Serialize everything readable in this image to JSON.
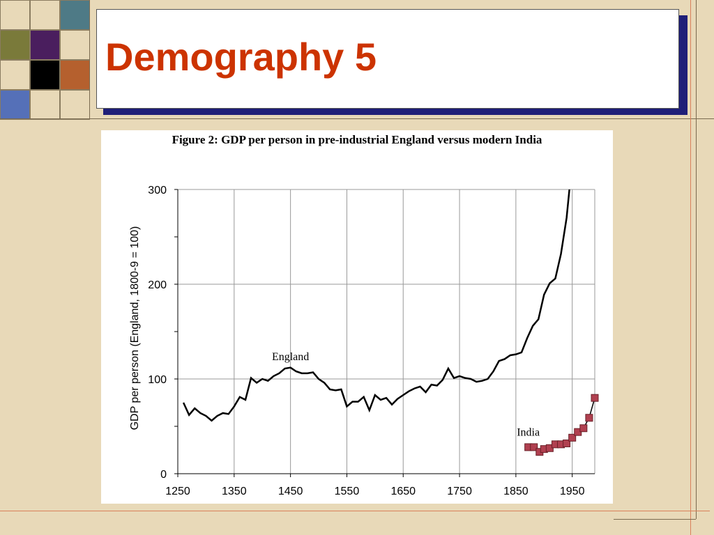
{
  "slide": {
    "title": "Demography 5",
    "accent_color": "#CC3300"
  },
  "decor": {
    "squares": [
      {
        "color": "#E8D9B8"
      },
      {
        "color": "#E8D9B8"
      },
      {
        "color": "#4E7A86"
      },
      {
        "color": "#7A7A3A"
      },
      {
        "color": "#4A1E5E"
      },
      {
        "color": "#E8D9B8"
      },
      {
        "color": "#E8D9B8"
      },
      {
        "color": "#000000"
      },
      {
        "color": "#B5602E"
      },
      {
        "color": "#5570B8"
      },
      {
        "color": "#E8D9B8"
      },
      {
        "color": "#E8D9B8"
      }
    ]
  },
  "figure": {
    "caption": "Figure 2: GDP per person in pre-industrial England versus modern India"
  },
  "chart_data": {
    "type": "line",
    "ylabel": "GDP per person (England, 1800-9 = 100)",
    "xlabel": "",
    "xlim": [
      1250,
      1990
    ],
    "ylim": [
      0,
      300
    ],
    "x_ticks": [
      1250,
      1350,
      1450,
      1550,
      1650,
      1750,
      1850,
      1950
    ],
    "y_ticks": [
      0,
      100,
      200,
      300
    ],
    "grid": true,
    "annotations": [
      {
        "text": "England",
        "x": 1450,
        "y": 120
      },
      {
        "text": "India",
        "x": 1872,
        "y": 40
      }
    ],
    "series": [
      {
        "name": "England",
        "color": "#000000",
        "marker": "none",
        "points": [
          [
            1260,
            75
          ],
          [
            1270,
            62
          ],
          [
            1280,
            69
          ],
          [
            1290,
            64
          ],
          [
            1300,
            61
          ],
          [
            1310,
            56
          ],
          [
            1320,
            61
          ],
          [
            1330,
            64
          ],
          [
            1340,
            63
          ],
          [
            1350,
            71
          ],
          [
            1360,
            81
          ],
          [
            1370,
            78
          ],
          [
            1380,
            101
          ],
          [
            1390,
            96
          ],
          [
            1400,
            100
          ],
          [
            1410,
            98
          ],
          [
            1420,
            103
          ],
          [
            1430,
            106
          ],
          [
            1440,
            111
          ],
          [
            1450,
            112
          ],
          [
            1460,
            108
          ],
          [
            1470,
            106
          ],
          [
            1480,
            106
          ],
          [
            1490,
            107
          ],
          [
            1500,
            100
          ],
          [
            1510,
            96
          ],
          [
            1520,
            89
          ],
          [
            1530,
            88
          ],
          [
            1540,
            89
          ],
          [
            1550,
            71
          ],
          [
            1560,
            76
          ],
          [
            1570,
            76
          ],
          [
            1580,
            81
          ],
          [
            1590,
            67
          ],
          [
            1600,
            83
          ],
          [
            1610,
            78
          ],
          [
            1620,
            80
          ],
          [
            1630,
            73
          ],
          [
            1640,
            79
          ],
          [
            1650,
            83
          ],
          [
            1660,
            87
          ],
          [
            1670,
            90
          ],
          [
            1680,
            92
          ],
          [
            1690,
            86
          ],
          [
            1700,
            94
          ],
          [
            1710,
            93
          ],
          [
            1720,
            99
          ],
          [
            1730,
            111
          ],
          [
            1740,
            101
          ],
          [
            1750,
            103
          ],
          [
            1760,
            101
          ],
          [
            1770,
            100
          ],
          [
            1780,
            97
          ],
          [
            1790,
            98
          ],
          [
            1800,
            100
          ],
          [
            1810,
            108
          ],
          [
            1820,
            119
          ],
          [
            1830,
            121
          ],
          [
            1840,
            125
          ],
          [
            1850,
            126
          ],
          [
            1860,
            128
          ],
          [
            1870,
            143
          ],
          [
            1880,
            156
          ],
          [
            1890,
            163
          ],
          [
            1900,
            189
          ],
          [
            1910,
            201
          ],
          [
            1920,
            206
          ],
          [
            1930,
            232
          ],
          [
            1940,
            270
          ],
          [
            1945,
            300
          ]
        ]
      },
      {
        "name": "India",
        "color": "#B04050",
        "marker": "square",
        "points": [
          [
            1872,
            28
          ],
          [
            1882,
            28
          ],
          [
            1892,
            23
          ],
          [
            1900,
            26
          ],
          [
            1910,
            27
          ],
          [
            1920,
            31
          ],
          [
            1930,
            31
          ],
          [
            1940,
            32
          ],
          [
            1950,
            38
          ],
          [
            1960,
            44
          ],
          [
            1970,
            48
          ],
          [
            1980,
            59
          ],
          [
            1990,
            80
          ]
        ]
      }
    ]
  }
}
